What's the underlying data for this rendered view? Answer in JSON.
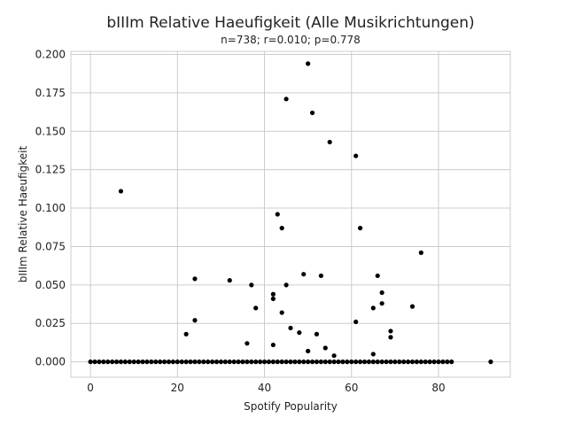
{
  "chart_data": {
    "type": "scatter",
    "title": "bIIIm Relative Haeufigkeit (Alle Musikrichtungen)",
    "subtitle": "n=738; r=0.010; p=0.778",
    "xlabel": "Spotify Popularity",
    "ylabel": "bIIIm Relative Haeufigkeit",
    "xlim": [
      -4.5,
      96.5
    ],
    "ylim": [
      -0.01,
      0.202
    ],
    "xticks": [
      0,
      20,
      40,
      60,
      80
    ],
    "yticks": [
      0.0,
      0.025,
      0.05,
      0.075,
      0.1,
      0.125,
      0.15,
      0.175,
      0.2
    ],
    "ytick_labels": [
      "0.000",
      "0.025",
      "0.050",
      "0.075",
      "0.100",
      "0.125",
      "0.150",
      "0.175",
      "0.200"
    ],
    "grid": true,
    "marker_color": "#000000",
    "baseline_x_range": [
      0,
      83
    ],
    "points": [
      [
        92,
        0.0
      ],
      [
        7,
        0.111
      ],
      [
        50,
        0.194
      ],
      [
        45,
        0.171
      ],
      [
        51,
        0.162
      ],
      [
        55,
        0.143
      ],
      [
        61,
        0.134
      ],
      [
        43,
        0.096
      ],
      [
        44,
        0.087
      ],
      [
        62,
        0.087
      ],
      [
        76,
        0.071
      ],
      [
        49,
        0.057
      ],
      [
        53,
        0.056
      ],
      [
        66,
        0.056
      ],
      [
        24,
        0.054
      ],
      [
        32,
        0.053
      ],
      [
        37,
        0.05
      ],
      [
        45,
        0.05
      ],
      [
        67,
        0.045
      ],
      [
        42,
        0.044
      ],
      [
        42,
        0.041
      ],
      [
        67,
        0.038
      ],
      [
        38,
        0.035
      ],
      [
        65,
        0.035
      ],
      [
        74,
        0.036
      ],
      [
        44,
        0.032
      ],
      [
        24,
        0.027
      ],
      [
        61,
        0.026
      ],
      [
        46,
        0.022
      ],
      [
        69,
        0.02
      ],
      [
        48,
        0.019
      ],
      [
        22,
        0.018
      ],
      [
        52,
        0.018
      ],
      [
        69,
        0.016
      ],
      [
        36,
        0.012
      ],
      [
        42,
        0.011
      ],
      [
        54,
        0.009
      ],
      [
        50,
        0.007
      ],
      [
        65,
        0.005
      ],
      [
        56,
        0.004
      ]
    ]
  }
}
